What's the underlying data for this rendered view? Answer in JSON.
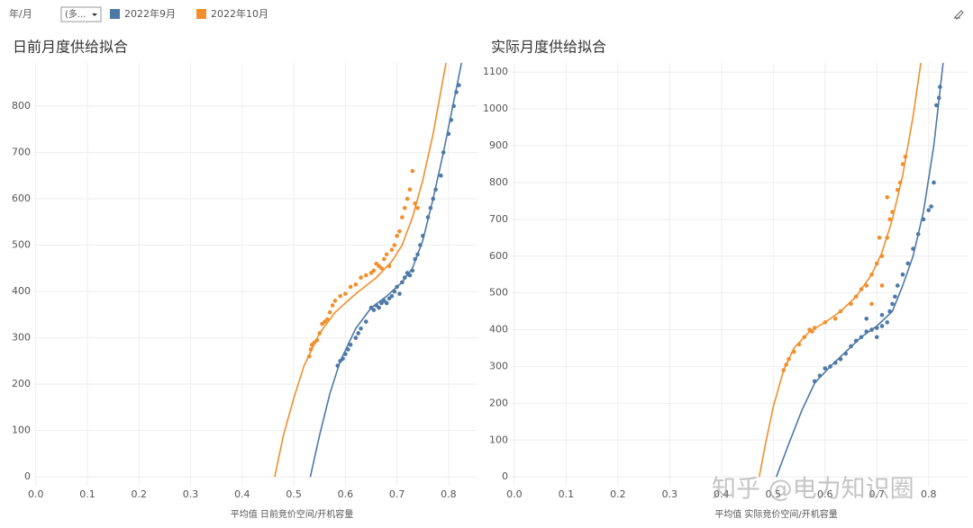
{
  "toolbar": {
    "filter_label": "年/月",
    "filter_value": "(多...",
    "watermark": "知乎 @电力知识圈"
  },
  "legend": [
    {
      "name": "2022年9月",
      "color": "#4e79a7"
    },
    {
      "name": "2022年10月",
      "color": "#f28e2b"
    }
  ],
  "chart_data": [
    {
      "type": "scatter",
      "title": "日前月度供给拟合",
      "x_label": "平均值 日前竞价空间/开机容量",
      "xlim": [
        -0.003,
        0.856
      ],
      "ylim": [
        -19,
        893
      ],
      "xticks": [
        {
          "value": 0,
          "label": "0.0"
        },
        0.1,
        0.2,
        0.3,
        0.4,
        0.5,
        0.6,
        0.7,
        0.8
      ],
      "yticks": [
        0,
        100,
        200,
        300,
        400,
        500,
        600,
        700,
        800
      ],
      "grid": true,
      "series": [
        {
          "color": "#4e79a7",
          "x": [
            0.585,
            0.59,
            0.595,
            0.6,
            0.605,
            0.61,
            0.62,
            0.625,
            0.63,
            0.64,
            0.65,
            0.655,
            0.66,
            0.665,
            0.67,
            0.675,
            0.68,
            0.685,
            0.69,
            0.695,
            0.7,
            0.705,
            0.71,
            0.715,
            0.72,
            0.725,
            0.73,
            0.735,
            0.74,
            0.745,
            0.75,
            0.76,
            0.765,
            0.77,
            0.775,
            0.785,
            0.79,
            0.8,
            0.805,
            0.81,
            0.815,
            0.82
          ],
          "values": [
            240,
            250,
            255,
            265,
            275,
            285,
            300,
            310,
            320,
            335,
            365,
            360,
            370,
            365,
            375,
            380,
            375,
            385,
            390,
            400,
            410,
            395,
            420,
            430,
            440,
            435,
            445,
            470,
            480,
            500,
            520,
            560,
            580,
            600,
            620,
            650,
            700,
            740,
            770,
            800,
            830,
            845
          ]
        },
        {
          "color": "#f28e2b",
          "x": [
            0.53,
            0.533,
            0.535,
            0.54,
            0.545,
            0.55,
            0.555,
            0.56,
            0.565,
            0.57,
            0.575,
            0.58,
            0.59,
            0.6,
            0.61,
            0.62,
            0.63,
            0.64,
            0.65,
            0.655,
            0.66,
            0.665,
            0.67,
            0.675,
            0.68,
            0.685,
            0.69,
            0.695,
            0.7,
            0.705,
            0.71,
            0.715,
            0.72,
            0.725,
            0.73,
            0.735,
            0.74
          ],
          "values": [
            260,
            275,
            285,
            290,
            295,
            310,
            330,
            335,
            340,
            355,
            370,
            380,
            390,
            395,
            410,
            415,
            430,
            435,
            440,
            445,
            460,
            455,
            450,
            470,
            480,
            455,
            490,
            500,
            520,
            530,
            560,
            580,
            600,
            620,
            660,
            590,
            580
          ]
        }
      ],
      "trend_lines": [
        {
          "color": "#4e79a7",
          "x": [
            0.532,
            0.55,
            0.57,
            0.59,
            0.62,
            0.65,
            0.68,
            0.71,
            0.73,
            0.75,
            0.77,
            0.79,
            0.81,
            0.825
          ],
          "values": [
            0,
            90,
            180,
            250,
            320,
            365,
            390,
            420,
            450,
            510,
            600,
            700,
            810,
            893
          ]
        },
        {
          "color": "#f28e2b",
          "x": [
            0.463,
            0.48,
            0.5,
            0.52,
            0.55,
            0.58,
            0.62,
            0.66,
            0.69,
            0.71,
            0.73,
            0.75,
            0.77,
            0.795
          ],
          "values": [
            0,
            90,
            170,
            240,
            310,
            355,
            395,
            430,
            465,
            500,
            560,
            640,
            740,
            893
          ]
        }
      ]
    },
    {
      "type": "scatter",
      "title": "实际月度供给拟合",
      "x_label": "平均值 实际竞价空间/开机容量",
      "xlim": [
        -0.005,
        0.877
      ],
      "ylim": [
        -24,
        1125
      ],
      "xticks": [
        {
          "value": 0,
          "label": "0.0"
        },
        0.1,
        0.2,
        0.3,
        0.4,
        0.5,
        0.6,
        0.7,
        0.8
      ],
      "yticks": [
        0,
        100,
        200,
        300,
        400,
        500,
        600,
        700,
        800,
        900,
        1000,
        1100
      ],
      "grid": true,
      "series": [
        {
          "color": "#4e79a7",
          "x": [
            0.58,
            0.59,
            0.6,
            0.61,
            0.62,
            0.63,
            0.64,
            0.65,
            0.66,
            0.67,
            0.68,
            0.69,
            0.7,
            0.71,
            0.72,
            0.725,
            0.73,
            0.735,
            0.74,
            0.75,
            0.76,
            0.77,
            0.78,
            0.79,
            0.8,
            0.805,
            0.81,
            0.815,
            0.82,
            0.822,
            0.7,
            0.71,
            0.68
          ],
          "values": [
            260,
            275,
            295,
            300,
            310,
            320,
            335,
            355,
            370,
            380,
            395,
            400,
            405,
            410,
            420,
            450,
            470,
            490,
            520,
            550,
            580,
            620,
            660,
            700,
            725,
            735,
            800,
            1010,
            1030,
            1060,
            380,
            440,
            430
          ]
        },
        {
          "color": "#f28e2b",
          "x": [
            0.52,
            0.525,
            0.53,
            0.54,
            0.55,
            0.56,
            0.57,
            0.575,
            0.58,
            0.6,
            0.62,
            0.63,
            0.65,
            0.66,
            0.67,
            0.68,
            0.69,
            0.7,
            0.71,
            0.72,
            0.725,
            0.73,
            0.74,
            0.745,
            0.75,
            0.755,
            0.72,
            0.705,
            0.71,
            0.69
          ],
          "values": [
            290,
            305,
            320,
            340,
            360,
            380,
            400,
            395,
            405,
            420,
            430,
            450,
            470,
            490,
            510,
            520,
            550,
            580,
            600,
            650,
            700,
            720,
            780,
            800,
            850,
            870,
            760,
            650,
            520,
            470
          ]
        }
      ],
      "trend_lines": [
        {
          "color": "#4e79a7",
          "x": [
            0.506,
            0.53,
            0.555,
            0.58,
            0.61,
            0.64,
            0.67,
            0.7,
            0.73,
            0.75,
            0.77,
            0.79,
            0.81,
            0.828
          ],
          "values": [
            0,
            90,
            180,
            255,
            300,
            340,
            380,
            410,
            450,
            520,
            600,
            720,
            900,
            1125
          ]
        },
        {
          "color": "#f28e2b",
          "x": [
            0.473,
            0.485,
            0.5,
            0.52,
            0.54,
            0.57,
            0.6,
            0.63,
            0.66,
            0.69,
            0.71,
            0.73,
            0.75,
            0.77,
            0.785
          ],
          "values": [
            0,
            90,
            190,
            290,
            350,
            395,
            420,
            450,
            490,
            550,
            610,
            700,
            820,
            980,
            1125
          ]
        }
      ]
    }
  ]
}
